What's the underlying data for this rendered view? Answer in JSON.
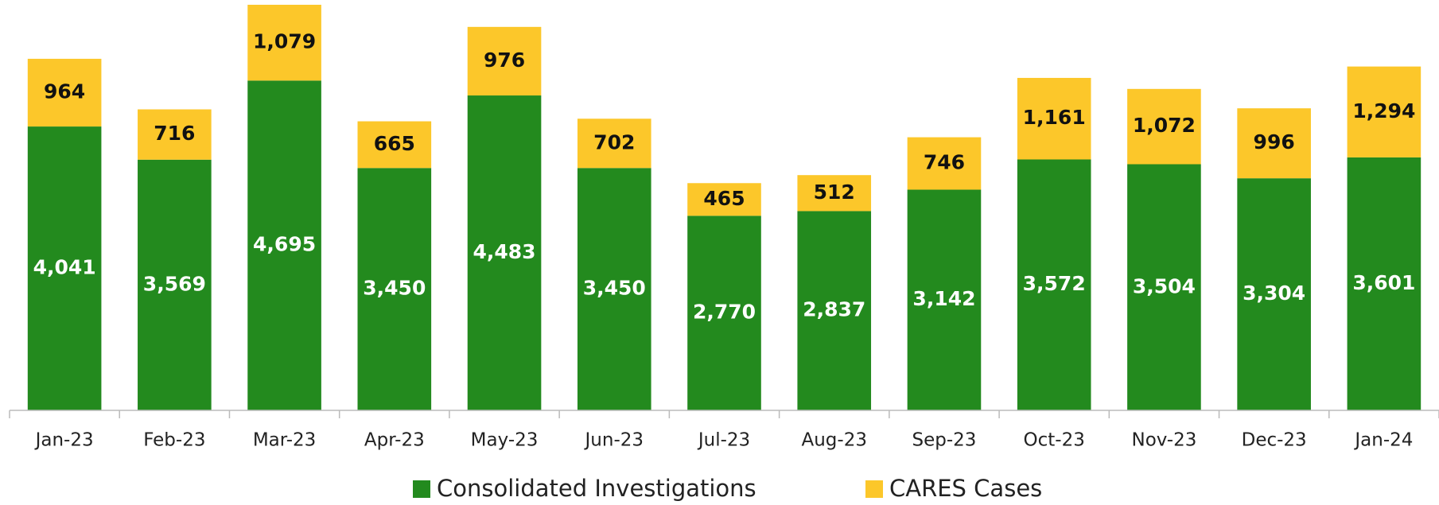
{
  "chart_data": {
    "type": "stacked-bar",
    "categories": [
      "Jan-23",
      "Feb-23",
      "Mar-23",
      "Apr-23",
      "May-23",
      "Jun-23",
      "Jul-23",
      "Aug-23",
      "Sep-23",
      "Oct-23",
      "Nov-23",
      "Dec-23",
      "Jan-24"
    ],
    "series": [
      {
        "name": "Consolidated Investigations",
        "color": "#238a1e",
        "values": [
          4041,
          3569,
          4695,
          3450,
          4483,
          3450,
          2770,
          2837,
          3142,
          3572,
          3504,
          3304,
          3601
        ],
        "value_labels": [
          "4,041",
          "3,569",
          "4,695",
          "3,450",
          "4,483",
          "3,450",
          "2,770",
          "2,837",
          "3,142",
          "3,572",
          "3,504",
          "3,304",
          "3,601"
        ]
      },
      {
        "name": "CARES Cases",
        "color": "#fcc72a",
        "values": [
          964,
          716,
          1079,
          665,
          976,
          702,
          465,
          512,
          746,
          1161,
          1072,
          996,
          1294
        ],
        "value_labels": [
          "964",
          "716",
          "1,079",
          "665",
          "976",
          "702",
          "465",
          "512",
          "746",
          "1,161",
          "1,072",
          "996",
          "1,294"
        ]
      }
    ],
    "legend": "bottom"
  }
}
